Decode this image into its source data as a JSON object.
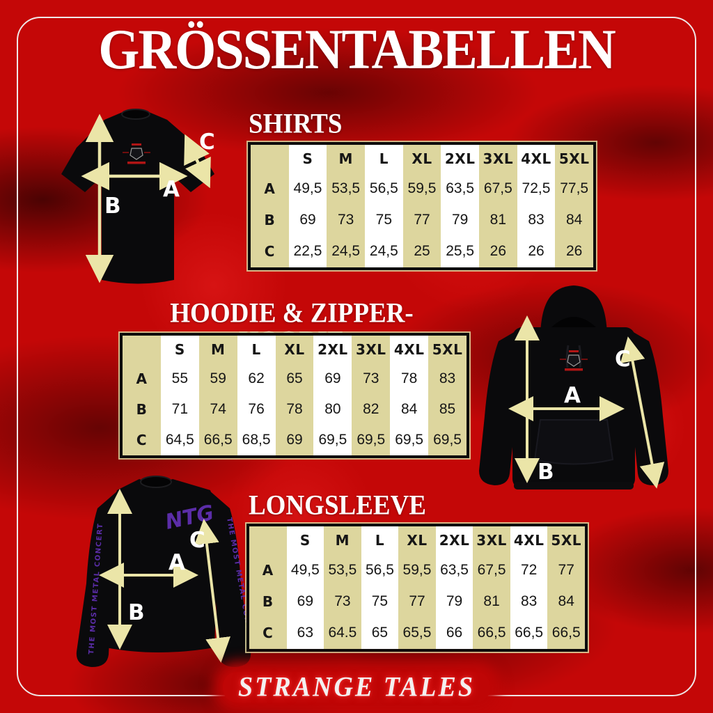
{
  "page": {
    "title": "GRÖSSENTABELLEN",
    "footer_wordmark": "STRANGE TALES"
  },
  "arrow_labels": {
    "a": "A",
    "b": "B",
    "c": "C"
  },
  "colors": {
    "background_red": "#c40707",
    "table_khaki": "#ddd69e",
    "table_white": "#ffffff",
    "table_border_black": "#0c0c0c",
    "arrow_yellow": "#ebe5a8",
    "logo_purple": "#5b2da8",
    "chest_logo_red": "#b01515"
  },
  "sections": [
    {
      "id": "shirts",
      "heading": "SHIRTS",
      "table": {
        "headers": [
          "S",
          "M",
          "L",
          "XL",
          "2XL",
          "3XL",
          "4XL",
          "5XL"
        ],
        "rows": [
          {
            "label": "A",
            "values": [
              "49,5",
              "53,5",
              "56,5",
              "59,5",
              "63,5",
              "67,5",
              "72,5",
              "77,5"
            ]
          },
          {
            "label": "B",
            "values": [
              "69",
              "73",
              "75",
              "77",
              "79",
              "81",
              "83",
              "84"
            ]
          },
          {
            "label": "C",
            "values": [
              "22,5",
              "24,5",
              "24,5",
              "25",
              "25,5",
              "26",
              "26",
              "26"
            ]
          }
        ]
      }
    },
    {
      "id": "hoodie",
      "heading": "HOODIE & ZIPPER-HOODIE",
      "table": {
        "headers": [
          "S",
          "M",
          "L",
          "XL",
          "2XL",
          "3XL",
          "4XL",
          "5XL"
        ],
        "rows": [
          {
            "label": "A",
            "values": [
              "55",
              "59",
              "62",
              "65",
              "69",
              "73",
              "78",
              "83"
            ]
          },
          {
            "label": "B",
            "values": [
              "71",
              "74",
              "76",
              "78",
              "80",
              "82",
              "84",
              "85"
            ]
          },
          {
            "label": "C",
            "values": [
              "64,5",
              "66,5",
              "68,5",
              "69",
              "69,5",
              "69,5",
              "69,5",
              "69,5"
            ]
          }
        ]
      }
    },
    {
      "id": "longsleeve",
      "heading": "LONGSLEEVE",
      "table": {
        "headers": [
          "S",
          "M",
          "L",
          "XL",
          "2XL",
          "3XL",
          "4XL",
          "5XL"
        ],
        "rows": [
          {
            "label": "A",
            "values": [
              "49,5",
              "53,5",
              "56,5",
              "59,5",
              "63,5",
              "67,5",
              "72",
              "77"
            ]
          },
          {
            "label": "B",
            "values": [
              "69",
              "73",
              "75",
              "77",
              "79",
              "81",
              "83",
              "84"
            ]
          },
          {
            "label": "C",
            "values": [
              "63",
              "64.5",
              "65",
              "65,5",
              "66",
              "66,5",
              "66,5",
              "66,5"
            ]
          }
        ]
      }
    }
  ],
  "garments": {
    "longsleeve_logo": "NTG",
    "longsleeve_sleeve_text": "THE MOST METAL CONCERT"
  }
}
